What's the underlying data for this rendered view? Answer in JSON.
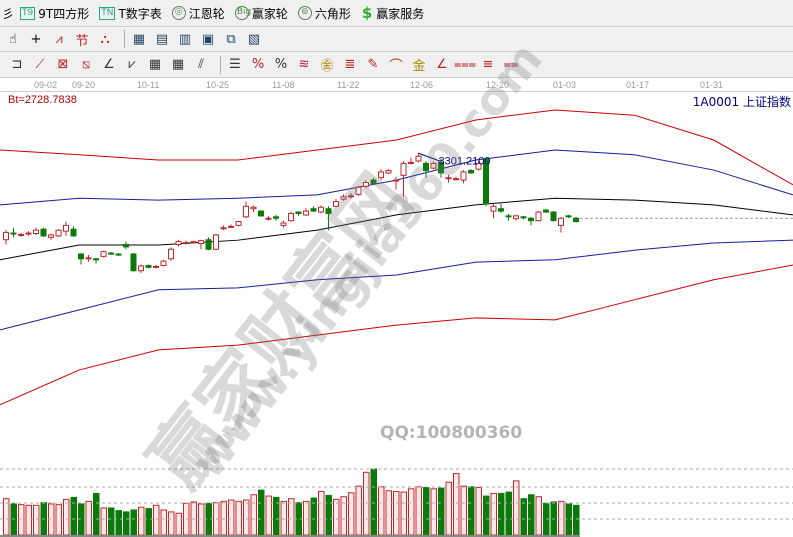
{
  "toolbar1": [
    {
      "icon": "T9",
      "label": "9T四方形"
    },
    {
      "icon": "TN",
      "label": "T数字表"
    },
    {
      "icon": "◎",
      "label": "江恩轮"
    },
    {
      "icon": "Big",
      "label": "赢家轮"
    },
    {
      "icon": "⊚",
      "label": "六角形"
    },
    {
      "icon": "$",
      "label": "赢家服务"
    }
  ],
  "toolbar2": [
    "hand-icon",
    "crosshair-icon",
    "line-draw-icon",
    "section-icon",
    "cycle-icon",
    "calendar-icon",
    "calculator-icon",
    "notes-icon",
    "save-icon",
    "network-icon",
    "print-icon"
  ],
  "toolbar3": [
    "rect-icon",
    "fan-icon",
    "gann-box-icon",
    "gann-grid-icon",
    "angle-icon",
    "wave-icon",
    "grid-icon",
    "grid2-icon",
    "parallel-icon",
    "ruler-icon",
    "percent-line-icon",
    "%",
    "percent-band-icon",
    "gold-coin-icon",
    "gold-line-icon",
    "pen-icon",
    "golden-arc-icon",
    "gold-icon",
    "angle2-icon",
    "fib-icon",
    "fib2-icon",
    "fib3-icon"
  ],
  "dates": [
    "09-02",
    "09-20",
    "10-11",
    "10-25",
    "11-08",
    "11-22",
    "12-06",
    "12-20",
    "01-03",
    "01-17",
    "01-31"
  ],
  "bt_label": "Bt=2728.7838",
  "index_label": "1A0001  上证指数",
  "high_label": "3301.2100",
  "watermark": {
    "cn": "赢家财富网",
    "url": "www.yingjia360.com",
    "qq": "QQ:100800360"
  },
  "colors": {
    "up": "#c0282d",
    "down": "#0b7a0b",
    "upper_band": "#cc0000",
    "mid_band": "#000080",
    "middle": "#000000"
  },
  "chart_data": {
    "type": "candlestick",
    "candles_ochl": [
      [
        3120,
        3135,
        3140,
        3110
      ],
      [
        3134,
        3132,
        3145,
        3125
      ],
      [
        3130,
        3131,
        3134,
        3126
      ],
      [
        3132,
        3134,
        3138,
        3128
      ],
      [
        3133,
        3140,
        3145,
        3130
      ],
      [
        3142,
        3128,
        3145,
        3126
      ],
      [
        3125,
        3130,
        3133,
        3120
      ],
      [
        3128,
        3140,
        3142,
        3126
      ],
      [
        3138,
        3150,
        3158,
        3128
      ],
      [
        3142,
        3128,
        3148,
        3126
      ],
      [
        3090,
        3080,
        3092,
        3068
      ],
      [
        3082,
        3082,
        3088,
        3074
      ],
      [
        3080,
        3078,
        3082,
        3070
      ],
      [
        3085,
        3095,
        3097,
        3083
      ],
      [
        3092,
        3090,
        3094,
        3088
      ],
      [
        3090,
        3088,
        3092,
        3086
      ],
      [
        3110,
        3105,
        3116,
        3100
      ],
      [
        3090,
        3055,
        3092,
        3053
      ],
      [
        3055,
        3065,
        3068,
        3050
      ],
      [
        3066,
        3062,
        3068,
        3060
      ],
      [
        3064,
        3064,
        3067,
        3060
      ],
      [
        3066,
        3075,
        3078,
        3064
      ],
      [
        3080,
        3100,
        3104,
        3076
      ],
      [
        3110,
        3116,
        3120,
        3106
      ],
      [
        3114,
        3114,
        3118,
        3110
      ],
      [
        3114,
        3116,
        3118,
        3112
      ],
      [
        3112,
        3118,
        3120,
        3100
      ],
      [
        3120,
        3100,
        3125,
        3098
      ],
      [
        3100,
        3130,
        3132,
        3098
      ],
      [
        3145,
        3145,
        3150,
        3140
      ],
      [
        3148,
        3148,
        3152,
        3144
      ],
      [
        3150,
        3158,
        3160,
        3148
      ],
      [
        3168,
        3190,
        3200,
        3165
      ],
      [
        3185,
        3188,
        3192,
        3178
      ],
      [
        3180,
        3170,
        3182,
        3168
      ],
      [
        3165,
        3165,
        3170,
        3160
      ],
      [
        3168,
        3165,
        3172,
        3160
      ],
      [
        3150,
        3155,
        3160,
        3145
      ],
      [
        3160,
        3175,
        3178,
        3158
      ],
      [
        3178,
        3175,
        3180,
        3170
      ],
      [
        3172,
        3180,
        3186,
        3170
      ],
      [
        3185,
        3180,
        3190,
        3178
      ],
      [
        3178,
        3188,
        3192,
        3175
      ],
      [
        3185,
        3175,
        3190,
        3140
      ],
      [
        3190,
        3200,
        3205,
        3188
      ],
      [
        3205,
        3210,
        3215,
        3202
      ],
      [
        3212,
        3212,
        3218,
        3206
      ],
      [
        3215,
        3230,
        3233,
        3212
      ],
      [
        3232,
        3240,
        3245,
        3228
      ],
      [
        3245,
        3238,
        3250,
        3236
      ],
      [
        3250,
        3262,
        3268,
        3245
      ],
      [
        3260,
        3265,
        3268,
        3258
      ],
      [
        3245,
        3245,
        3252,
        3225
      ],
      [
        3255,
        3280,
        3285,
        3210
      ],
      [
        3280,
        3282,
        3292,
        3278
      ],
      [
        3285,
        3295,
        3301.21,
        3282
      ],
      [
        3280,
        3265,
        3285,
        3250
      ],
      [
        3270,
        3280,
        3284,
        3268
      ],
      [
        3282,
        3260,
        3290,
        3250
      ],
      [
        3250,
        3250,
        3256,
        3240
      ],
      [
        3248,
        3248,
        3252,
        3244
      ],
      [
        3245,
        3262,
        3266,
        3238
      ],
      [
        3265,
        3260,
        3268,
        3258
      ],
      [
        3268,
        3280,
        3285,
        3265
      ],
      [
        3290,
        3195,
        3292,
        3190
      ],
      [
        3180,
        3190,
        3195,
        3165
      ],
      [
        3185,
        3180,
        3195,
        3176
      ],
      [
        3170,
        3168,
        3174,
        3160
      ],
      [
        3164,
        3170,
        3172,
        3160
      ],
      [
        3168,
        3166,
        3170,
        3162
      ],
      [
        3165,
        3160,
        3168,
        3150
      ],
      [
        3160,
        3178,
        3180,
        3158
      ],
      [
        3182,
        3178,
        3185,
        3176
      ],
      [
        3178,
        3160,
        3180,
        3158
      ],
      [
        3150,
        3165,
        3168,
        3135
      ],
      [
        3170,
        3168,
        3172,
        3165
      ],
      [
        3165,
        3158,
        3168,
        3156
      ]
    ],
    "volumes": [
      55,
      47,
      46,
      45,
      45,
      49,
      47,
      46,
      54,
      57,
      47,
      51,
      63,
      41,
      41,
      37,
      35,
      38,
      42,
      40,
      45,
      38,
      35,
      33,
      48,
      50,
      47,
      48,
      49,
      51,
      53,
      51,
      53,
      61,
      68,
      59,
      57,
      51,
      55,
      49,
      51,
      56,
      66,
      60,
      54,
      58,
      64,
      74,
      95,
      100,
      73,
      67,
      66,
      65,
      70,
      73,
      72,
      70,
      71,
      80,
      93,
      74,
      73,
      72,
      59,
      63,
      63,
      65,
      82,
      55,
      61,
      58,
      48,
      50,
      51,
      47,
      45
    ],
    "bands": {
      "upper_red": [
        3308,
        3298,
        3287,
        3287,
        3308,
        3329,
        3371,
        3392,
        3381,
        3329,
        3235
      ],
      "upper_blue": [
        3193,
        3207,
        3203,
        3207,
        3214,
        3245,
        3287,
        3308,
        3298,
        3266,
        3214
      ],
      "middle": [
        3078,
        3109,
        3109,
        3119,
        3140,
        3172,
        3193,
        3207,
        3203,
        3193,
        3172
      ],
      "lower_blue": [
        2931,
        2973,
        3015,
        3019,
        3036,
        3046,
        3073,
        3078,
        3098,
        3113,
        3119
      ],
      "lower_red": [
        2774,
        2847,
        2889,
        2899,
        2920,
        2941,
        2956,
        2952,
        2994,
        3036,
        3067
      ]
    },
    "last_price": 3165
  }
}
